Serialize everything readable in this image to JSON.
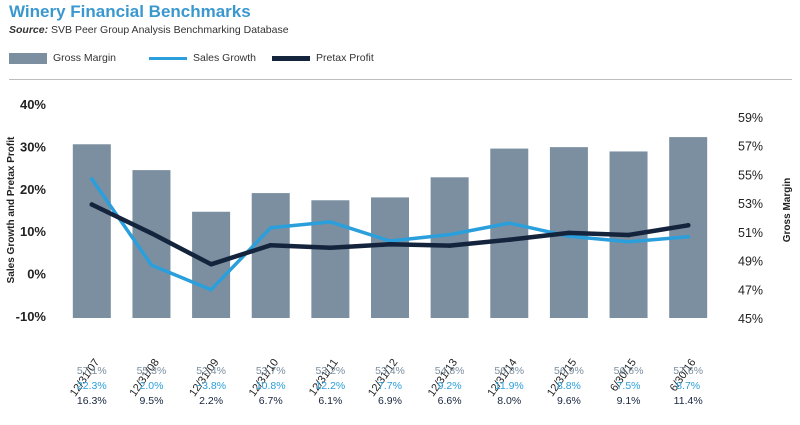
{
  "title": "Winery Financial Benchmarks",
  "source_label": "Source:",
  "source_text": "SVB Peer Group Analysis Benchmarking Database",
  "colors": {
    "bar": "#7b8fa0",
    "sales_growth": "#2a9fdc",
    "pretax_profit": "#15243d",
    "title": "#3a98cf"
  },
  "chart_data": {
    "type": "bar",
    "title": "",
    "categories": [
      "12/31/07",
      "12/31/08",
      "12/31/09",
      "12/31/10",
      "12/31/11",
      "12/31/12",
      "12/31/13",
      "12/31/14",
      "12/31/15",
      "6/30/15",
      "6/30/16"
    ],
    "left_axis": {
      "label": "Sales Growth and Pretax Profit",
      "ticks": [
        "40%",
        "30%",
        "20%",
        "10%",
        "0%",
        "-10%"
      ],
      "range": [
        -10,
        40
      ]
    },
    "right_axis": {
      "label": "Gross Margin",
      "ticks": [
        "59%",
        "57%",
        "55%",
        "53%",
        "51%",
        "49%",
        "47%",
        "45%"
      ],
      "range": [
        45,
        59
      ]
    },
    "series": [
      {
        "name": "Gross Margin",
        "type": "bar",
        "axis": "right",
        "values": [
          57.1,
          55.3,
          52.4,
          53.7,
          53.2,
          53.4,
          54.8,
          56.8,
          56.9,
          56.6,
          57.6
        ],
        "labels": [
          "57.1%",
          "55.3%",
          "52.4%",
          "53.7%",
          "53.2%",
          "53.4%",
          "54.8%",
          "56.8%",
          "56.9%",
          "56.6%",
          "57.6%"
        ]
      },
      {
        "name": "Sales Growth",
        "type": "line",
        "axis": "left",
        "values": [
          22.3,
          2.0,
          -3.8,
          10.8,
          12.2,
          7.7,
          9.2,
          11.9,
          8.8,
          7.5,
          8.7
        ],
        "labels": [
          "22.3%",
          "2.0%",
          "−3.8%",
          "10.8%",
          "12.2%",
          "7.7%",
          "9.2%",
          "11.9%",
          "8.8%",
          "7.5%",
          "8.7%"
        ]
      },
      {
        "name": "Pretax Profit",
        "type": "line",
        "axis": "left",
        "values": [
          16.3,
          9.5,
          2.2,
          6.7,
          6.1,
          6.9,
          6.6,
          8.0,
          9.6,
          9.1,
          11.4
        ],
        "labels": [
          "16.3%",
          "9.5%",
          "2.2%",
          "6.7%",
          "6.1%",
          "6.9%",
          "6.6%",
          "8.0%",
          "9.6%",
          "9.1%",
          "11.4%"
        ]
      }
    ],
    "label_colors": [
      "#7b8fa0",
      "#2a9fdc",
      "#15243d"
    ],
    "grid": false,
    "legend": "top-left"
  }
}
